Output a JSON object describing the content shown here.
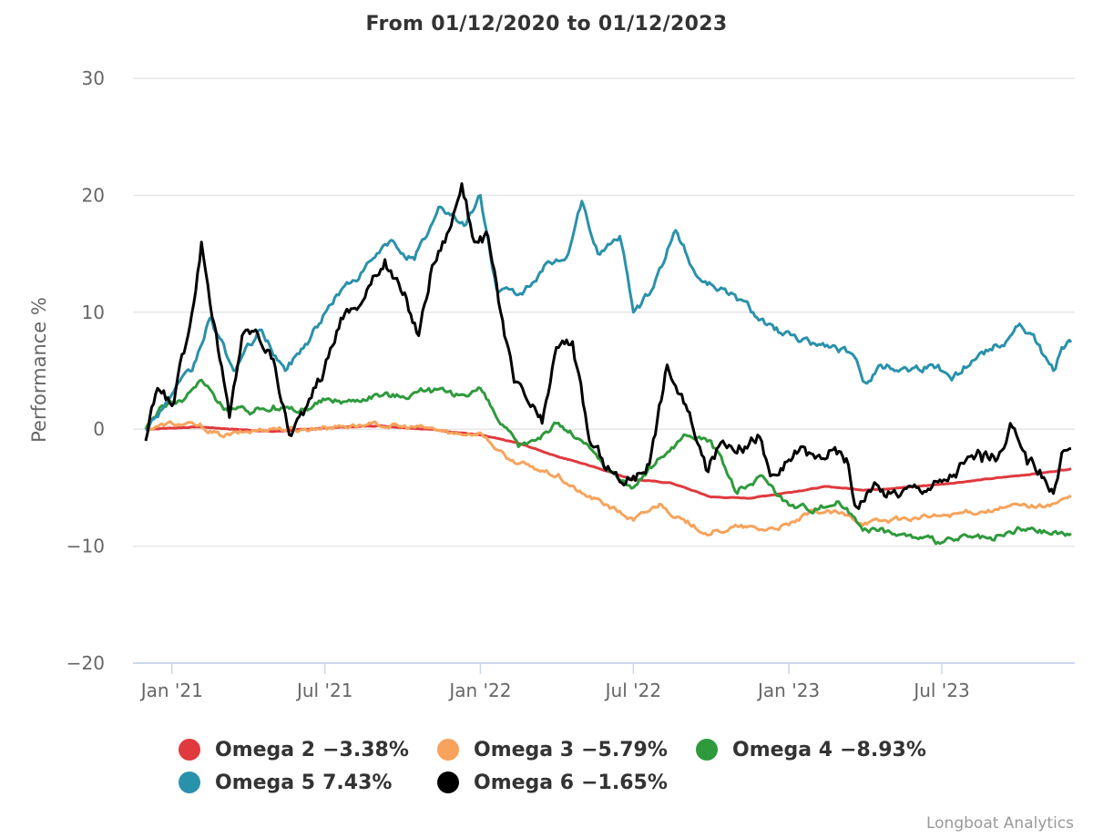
{
  "chart_data": {
    "type": "line",
    "title": "From 01/12/2020 to 01/12/2023",
    "xlabel": "",
    "ylabel": "Performance %",
    "ylim": [
      -20,
      30
    ],
    "yticks": [
      30,
      20,
      10,
      0,
      -10,
      -20
    ],
    "ytick_labels": [
      "30",
      "20",
      "10",
      "0",
      "−10",
      "−20"
    ],
    "xlim": [
      "2020-12-01",
      "2023-12-01"
    ],
    "xticks": [
      {
        "date": "2021-01-01",
        "label": "Jan '21"
      },
      {
        "date": "2021-07-01",
        "label": "Jul '21"
      },
      {
        "date": "2022-01-01",
        "label": "Jan '22"
      },
      {
        "date": "2022-07-01",
        "label": "Jul '22"
      },
      {
        "date": "2023-01-01",
        "label": "Jan '23"
      },
      {
        "date": "2023-07-01",
        "label": "Jul '23"
      }
    ],
    "grid": true,
    "legend_position": "bottom-center",
    "series": [
      {
        "name": "Omega 2",
        "final": "−3.38%",
        "color": "#e0393e",
        "points": [
          [
            "2020-12-01",
            0
          ],
          [
            "2021-02-01",
            0.2
          ],
          [
            "2021-03-15",
            0
          ],
          [
            "2021-05-01",
            -0.2
          ],
          [
            "2021-07-01",
            0.1
          ],
          [
            "2021-09-01",
            0.3
          ],
          [
            "2021-11-01",
            0
          ],
          [
            "2022-01-01",
            -0.5
          ],
          [
            "2022-02-15",
            -1.2
          ],
          [
            "2022-04-01",
            -2.3
          ],
          [
            "2022-05-15",
            -3.2
          ],
          [
            "2022-07-01",
            -4.3
          ],
          [
            "2022-08-15",
            -4.6
          ],
          [
            "2022-10-01",
            -5.8
          ],
          [
            "2022-11-15",
            -5.9
          ],
          [
            "2023-01-01",
            -5.4
          ],
          [
            "2023-02-15",
            -4.9
          ],
          [
            "2023-04-01",
            -5.2
          ],
          [
            "2023-05-15",
            -5.0
          ],
          [
            "2023-07-01",
            -4.7
          ],
          [
            "2023-09-01",
            -4.2
          ],
          [
            "2023-11-01",
            -3.7
          ],
          [
            "2023-12-01",
            -3.38
          ]
        ]
      },
      {
        "name": "Omega 3",
        "final": "−5.79%",
        "color": "#f7a35c",
        "points": [
          [
            "2020-12-01",
            0
          ],
          [
            "2021-01-01",
            0.5
          ],
          [
            "2021-02-01",
            0.3
          ],
          [
            "2021-03-01",
            -0.6
          ],
          [
            "2021-04-01",
            -0.2
          ],
          [
            "2021-05-01",
            0.1
          ],
          [
            "2021-06-01",
            -0.1
          ],
          [
            "2021-07-01",
            0.2
          ],
          [
            "2021-08-01",
            0.3
          ],
          [
            "2021-09-01",
            0.4
          ],
          [
            "2021-10-01",
            0.2
          ],
          [
            "2021-11-01",
            0.1
          ],
          [
            "2021-12-01",
            -0.4
          ],
          [
            "2022-01-01",
            -0.3
          ],
          [
            "2022-02-01",
            -2.5
          ],
          [
            "2022-03-01",
            -3.2
          ],
          [
            "2022-04-01",
            -4.0
          ],
          [
            "2022-05-01",
            -5.5
          ],
          [
            "2022-06-01",
            -6.5
          ],
          [
            "2022-07-01",
            -7.8
          ],
          [
            "2022-08-01",
            -6.4
          ],
          [
            "2022-09-01",
            -8.0
          ],
          [
            "2022-10-01",
            -9.0
          ],
          [
            "2022-11-01",
            -8.3
          ],
          [
            "2022-12-01",
            -8.6
          ],
          [
            "2023-01-01",
            -8.2
          ],
          [
            "2023-02-01",
            -7.0
          ],
          [
            "2023-03-01",
            -7.2
          ],
          [
            "2023-04-01",
            -8.0
          ],
          [
            "2023-05-01",
            -7.8
          ],
          [
            "2023-06-01",
            -7.6
          ],
          [
            "2023-07-01",
            -7.4
          ],
          [
            "2023-08-01",
            -7.1
          ],
          [
            "2023-09-01",
            -6.9
          ],
          [
            "2023-10-01",
            -6.5
          ],
          [
            "2023-11-01",
            -6.6
          ],
          [
            "2023-12-01",
            -5.79
          ]
        ]
      },
      {
        "name": "Omega 4",
        "final": "−8.93%",
        "color": "#2e9a3c",
        "points": [
          [
            "2020-12-01",
            0
          ],
          [
            "2020-12-20",
            2.0
          ],
          [
            "2021-01-15",
            2.5
          ],
          [
            "2021-02-05",
            4.2
          ],
          [
            "2021-03-01",
            2.0
          ],
          [
            "2021-04-01",
            1.5
          ],
          [
            "2021-05-01",
            2.0
          ],
          [
            "2021-06-01",
            1.5
          ],
          [
            "2021-07-01",
            2.5
          ],
          [
            "2021-08-01",
            2.4
          ],
          [
            "2021-09-01",
            3.0
          ],
          [
            "2021-10-01",
            2.8
          ],
          [
            "2021-11-01",
            3.5
          ],
          [
            "2021-12-01",
            2.8
          ],
          [
            "2022-01-01",
            3.5
          ],
          [
            "2022-01-20",
            1.0
          ],
          [
            "2022-02-15",
            -1.5
          ],
          [
            "2022-03-15",
            -0.5
          ],
          [
            "2022-04-01",
            0.5
          ],
          [
            "2022-05-01",
            -1.0
          ],
          [
            "2022-06-01",
            -3.5
          ],
          [
            "2022-07-01",
            -5.0
          ],
          [
            "2022-08-01",
            -2.5
          ],
          [
            "2022-09-01",
            -0.5
          ],
          [
            "2022-10-01",
            -1.0
          ],
          [
            "2022-11-01",
            -5.5
          ],
          [
            "2022-12-01",
            -4.0
          ],
          [
            "2023-01-01",
            -6.5
          ],
          [
            "2023-02-01",
            -6.8
          ],
          [
            "2023-03-01",
            -6.2
          ],
          [
            "2023-04-01",
            -8.5
          ],
          [
            "2023-05-01",
            -8.8
          ],
          [
            "2023-06-01",
            -9.3
          ],
          [
            "2023-07-01",
            -9.7
          ],
          [
            "2023-08-01",
            -9.2
          ],
          [
            "2023-09-01",
            -9.5
          ],
          [
            "2023-10-01",
            -8.5
          ],
          [
            "2023-11-01",
            -8.8
          ],
          [
            "2023-12-01",
            -8.93
          ]
        ]
      },
      {
        "name": "Omega 5",
        "final": "7.43%",
        "color": "#2a91aa",
        "points": [
          [
            "2020-12-01",
            0
          ],
          [
            "2021-01-01",
            3.0
          ],
          [
            "2021-01-25",
            5.0
          ],
          [
            "2021-02-15",
            9.5
          ],
          [
            "2021-03-15",
            5.0
          ],
          [
            "2021-04-15",
            8.5
          ],
          [
            "2021-05-15",
            5.0
          ],
          [
            "2021-06-15",
            8.0
          ],
          [
            "2021-07-15",
            11.5
          ],
          [
            "2021-08-15",
            13.5
          ],
          [
            "2021-09-15",
            16.0
          ],
          [
            "2021-10-15",
            14.5
          ],
          [
            "2021-11-15",
            19.0
          ],
          [
            "2021-12-15",
            17.5
          ],
          [
            "2022-01-01",
            20.0
          ],
          [
            "2022-01-20",
            12.0
          ],
          [
            "2022-02-15",
            11.5
          ],
          [
            "2022-03-15",
            13.5
          ],
          [
            "2022-04-15",
            15.0
          ],
          [
            "2022-05-01",
            19.5
          ],
          [
            "2022-05-20",
            15.0
          ],
          [
            "2022-06-15",
            16.5
          ],
          [
            "2022-07-01",
            10.0
          ],
          [
            "2022-07-20",
            11.5
          ],
          [
            "2022-08-20",
            17.0
          ],
          [
            "2022-09-15",
            13.0
          ],
          [
            "2022-10-15",
            12.0
          ],
          [
            "2022-11-15",
            10.5
          ],
          [
            "2022-12-15",
            8.5
          ],
          [
            "2023-01-15",
            7.5
          ],
          [
            "2023-02-15",
            7.2
          ],
          [
            "2023-03-15",
            6.5
          ],
          [
            "2023-04-01",
            4.0
          ],
          [
            "2023-04-20",
            5.5
          ],
          [
            "2023-05-20",
            5.2
          ],
          [
            "2023-06-20",
            5.5
          ],
          [
            "2023-07-15",
            4.5
          ],
          [
            "2023-08-15",
            6.5
          ],
          [
            "2023-09-15",
            7.5
          ],
          [
            "2023-10-01",
            9.0
          ],
          [
            "2023-10-20",
            7.5
          ],
          [
            "2023-11-10",
            5.0
          ],
          [
            "2023-11-20",
            7.0
          ],
          [
            "2023-12-01",
            7.43
          ]
        ]
      },
      {
        "name": "Omega 6",
        "final": "−1.65%",
        "color": "#000000",
        "points": [
          [
            "2020-12-01",
            -1.0
          ],
          [
            "2020-12-15",
            3.5
          ],
          [
            "2021-01-01",
            2.0
          ],
          [
            "2021-01-20",
            8.0
          ],
          [
            "2021-02-05",
            16.0
          ],
          [
            "2021-02-20",
            9.0
          ],
          [
            "2021-03-10",
            1.0
          ],
          [
            "2021-03-25",
            8.0
          ],
          [
            "2021-04-10",
            8.5
          ],
          [
            "2021-05-01",
            6.0
          ],
          [
            "2021-05-20",
            -0.5
          ],
          [
            "2021-06-10",
            2.0
          ],
          [
            "2021-06-30",
            5.0
          ],
          [
            "2021-07-20",
            9.5
          ],
          [
            "2021-08-15",
            11.0
          ],
          [
            "2021-09-10",
            14.5
          ],
          [
            "2021-10-01",
            11.5
          ],
          [
            "2021-10-20",
            8.0
          ],
          [
            "2021-11-05",
            14.0
          ],
          [
            "2021-11-25",
            17.0
          ],
          [
            "2021-12-10",
            21.0
          ],
          [
            "2021-12-25",
            16.0
          ],
          [
            "2022-01-10",
            16.5
          ],
          [
            "2022-01-25",
            10.0
          ],
          [
            "2022-02-10",
            4.0
          ],
          [
            "2022-02-25",
            2.5
          ],
          [
            "2022-03-15",
            0.5
          ],
          [
            "2022-04-01",
            7.0
          ],
          [
            "2022-04-20",
            7.5
          ],
          [
            "2022-05-10",
            -1.0
          ],
          [
            "2022-05-25",
            -2.5
          ],
          [
            "2022-06-15",
            -4.5
          ],
          [
            "2022-07-01",
            -4.0
          ],
          [
            "2022-07-20",
            -3.0
          ],
          [
            "2022-08-10",
            5.5
          ],
          [
            "2022-08-25",
            3.0
          ],
          [
            "2022-09-10",
            0.0
          ],
          [
            "2022-09-25",
            -3.5
          ],
          [
            "2022-10-15",
            -1.0
          ],
          [
            "2022-11-10",
            -1.5
          ],
          [
            "2022-11-25",
            -0.5
          ],
          [
            "2022-12-10",
            -4.0
          ],
          [
            "2022-12-25",
            -3.5
          ],
          [
            "2023-01-15",
            -1.5
          ],
          [
            "2023-02-01",
            -2.5
          ],
          [
            "2023-02-20",
            -1.8
          ],
          [
            "2023-03-10",
            -2.5
          ],
          [
            "2023-03-20",
            -6.5
          ],
          [
            "2023-04-10",
            -5.0
          ],
          [
            "2023-05-01",
            -5.5
          ],
          [
            "2023-06-01",
            -5.0
          ],
          [
            "2023-07-01",
            -4.5
          ],
          [
            "2023-07-20",
            -3.5
          ],
          [
            "2023-08-15",
            -2.0
          ],
          [
            "2023-09-05",
            -2.5
          ],
          [
            "2023-09-20",
            0.5
          ],
          [
            "2023-10-10",
            -3.0
          ],
          [
            "2023-10-25",
            -3.5
          ],
          [
            "2023-11-10",
            -5.5
          ],
          [
            "2023-11-20",
            -2.0
          ],
          [
            "2023-12-01",
            -1.65
          ]
        ]
      }
    ]
  },
  "credit": "Longboat Analytics"
}
